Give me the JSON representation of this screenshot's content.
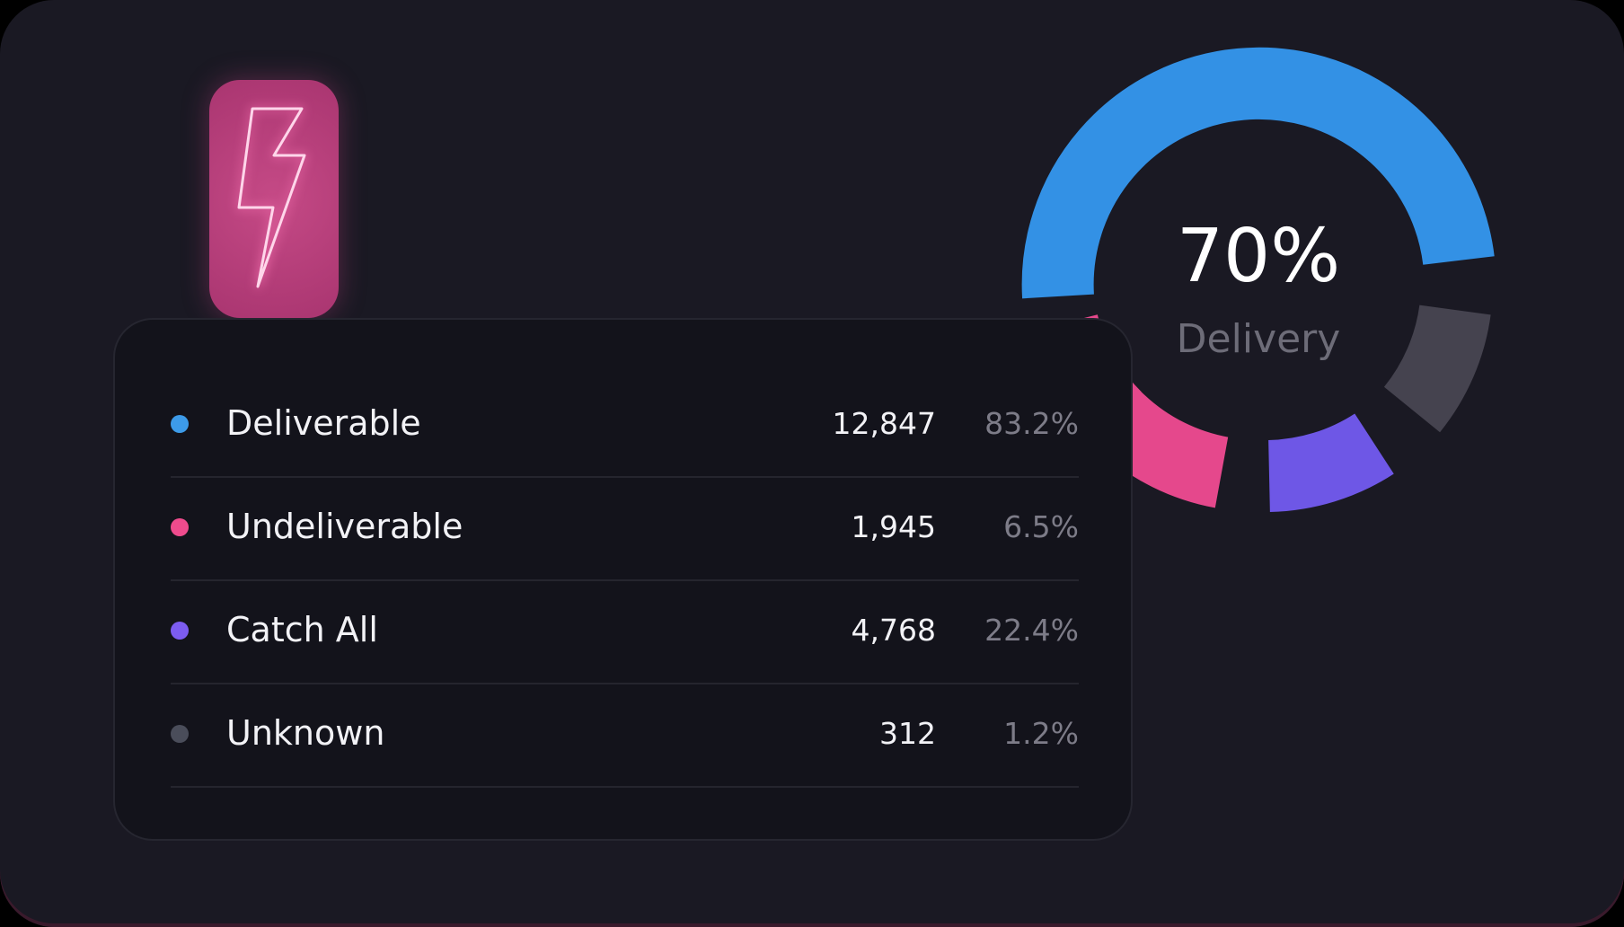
{
  "gauge": {
    "value": "70%",
    "label": "Delivery"
  },
  "rows": [
    {
      "label": "Deliverable",
      "count": "12,847",
      "percent": "83.2%"
    },
    {
      "label": "Undeliverable",
      "count": "1,945",
      "percent": "6.5%"
    },
    {
      "label": "Catch All",
      "count": "4,768",
      "percent": "22.4%"
    },
    {
      "label": "Unknown",
      "count": "312",
      "percent": "1.2%"
    }
  ]
}
